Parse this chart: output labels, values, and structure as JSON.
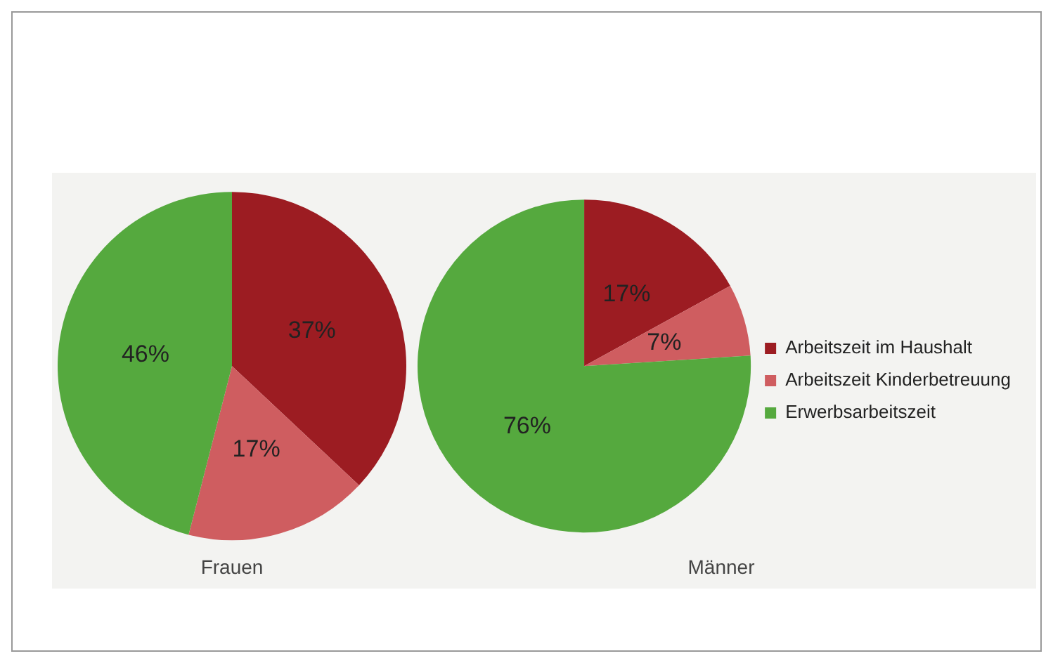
{
  "chart_data": [
    {
      "type": "pie",
      "xlabel": "Frauen",
      "categories": [
        null,
        null,
        null
      ],
      "values": [
        37,
        17,
        46
      ],
      "colors": [
        "#9c1c22",
        "#cf5d60",
        "#55a93e"
      ],
      "value_labels": [
        "37%",
        "17%",
        "46%"
      ],
      "legend": false
    },
    {
      "type": "pie",
      "xlabel": "Männer",
      "categories": [
        "Arbeitszeit im Haushalt",
        "Arbeitszeit Kinderbetreuung",
        "Erwerbsarbeitszeit"
      ],
      "values": [
        17,
        7,
        76
      ],
      "colors": [
        "#9c1c22",
        "#cf5d60",
        "#55a93e"
      ],
      "value_labels": [
        "17%",
        "7%",
        "76%"
      ],
      "legend": "right"
    }
  ]
}
